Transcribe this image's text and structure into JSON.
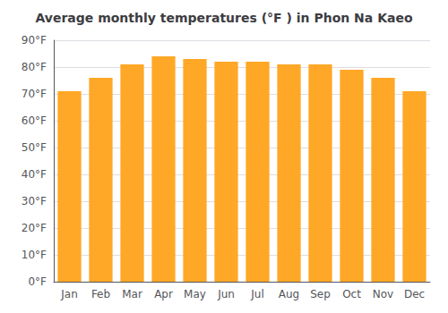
{
  "chart_data": {
    "type": "bar",
    "title": "Average monthly temperatures (°F ) in Phon Na Kaeo",
    "categories": [
      "Jan",
      "Feb",
      "Mar",
      "Apr",
      "May",
      "Jun",
      "Jul",
      "Aug",
      "Sep",
      "Oct",
      "Nov",
      "Dec"
    ],
    "values": [
      71,
      76,
      81,
      84,
      83,
      82,
      82,
      81,
      81,
      79,
      76,
      71
    ],
    "color": "#FFA726",
    "ylim": [
      0,
      90
    ],
    "yticks": [
      {
        "value": 0,
        "label": "0°F"
      },
      {
        "value": 10,
        "label": "10°F"
      },
      {
        "value": 20,
        "label": "20°F"
      },
      {
        "value": 30,
        "label": "30°F"
      },
      {
        "value": 40,
        "label": "40°F"
      },
      {
        "value": 50,
        "label": "50°F"
      },
      {
        "value": 60,
        "label": "60°F"
      },
      {
        "value": 70,
        "label": "70°F"
      },
      {
        "value": 80,
        "label": "80°F"
      },
      {
        "value": 90,
        "label": "90°F"
      }
    ],
    "grid": true
  }
}
